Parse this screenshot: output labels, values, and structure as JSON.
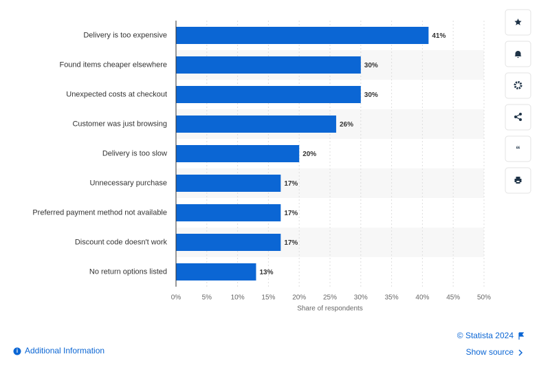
{
  "chart_data": {
    "type": "bar",
    "orientation": "horizontal",
    "categories": [
      "Delivery is too expensive",
      "Found items cheaper elsewhere",
      "Unexpected costs at checkout",
      "Customer was just browsing",
      "Delivery is too slow",
      "Unnecessary purchase",
      "Preferred payment method not available",
      "Discount code doesn't work",
      "No return options listed"
    ],
    "values": [
      41,
      30,
      30,
      26,
      20,
      17,
      17,
      17,
      13
    ],
    "value_labels": [
      "41%",
      "30%",
      "30%",
      "26%",
      "20%",
      "17%",
      "17%",
      "17%",
      "13%"
    ],
    "color": "#0b66d4",
    "xlabel": "Share of respondents",
    "xlim": [
      0,
      50
    ],
    "xticks": [
      {
        "value": 0,
        "label": "0%"
      },
      {
        "value": 5,
        "label": "5%"
      },
      {
        "value": 10,
        "label": "10%"
      },
      {
        "value": 15,
        "label": "15%"
      },
      {
        "value": 20,
        "label": "20%"
      },
      {
        "value": 25,
        "label": "25%"
      },
      {
        "value": 30,
        "label": "30%"
      },
      {
        "value": 35,
        "label": "35%"
      },
      {
        "value": 40,
        "label": "40%"
      },
      {
        "value": 45,
        "label": "45%"
      },
      {
        "value": 50,
        "label": "50%"
      }
    ],
    "grid": true
  },
  "footer": {
    "additional_information": "Additional Information",
    "credit": "© Statista 2024",
    "show_source": "Show source"
  }
}
